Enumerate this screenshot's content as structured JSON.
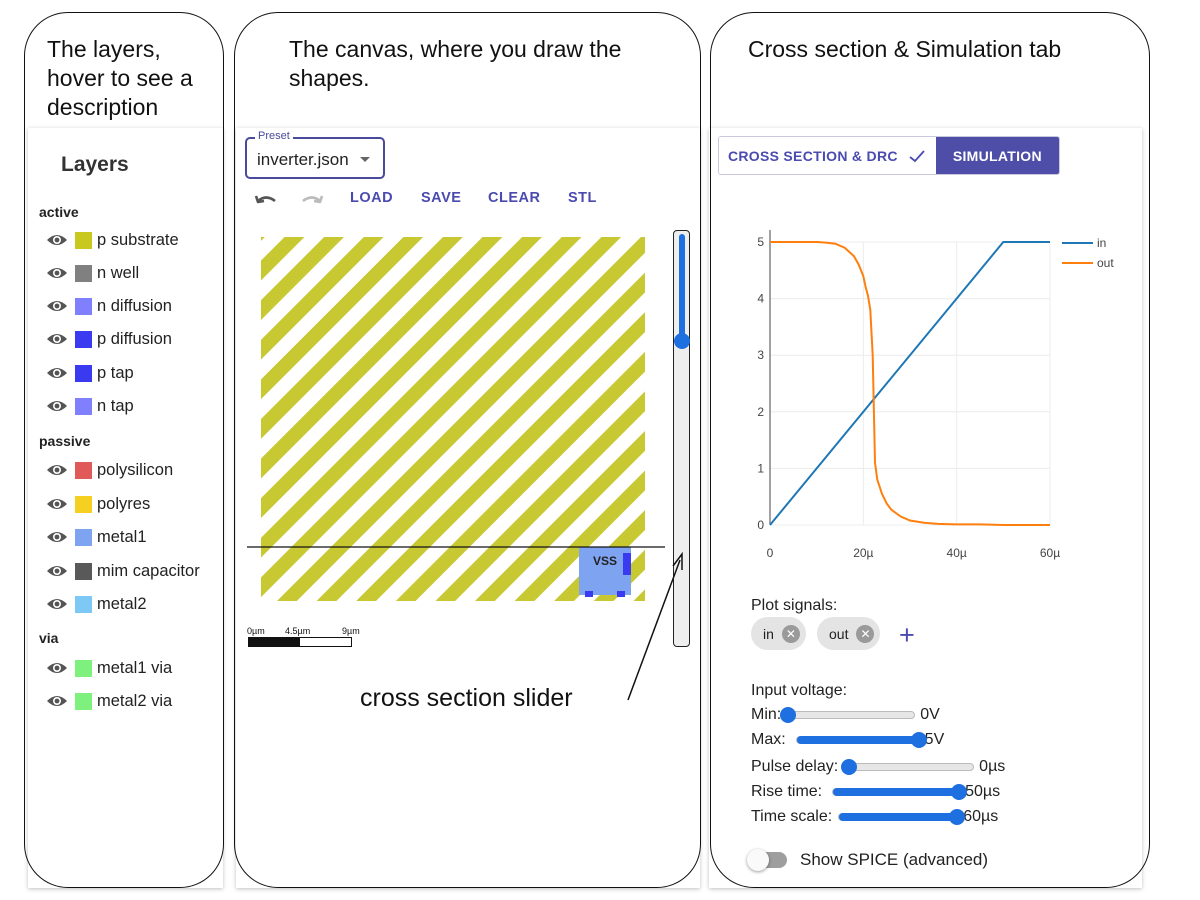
{
  "captions": {
    "layers": [
      "The layers,",
      "hover to see a",
      "description"
    ],
    "canvas": [
      "The canvas, where you draw the",
      "shapes."
    ],
    "right": [
      "Cross section & Simulation tab"
    ],
    "slider_annotation": "cross section slider"
  },
  "layers_panel": {
    "title": "Layers",
    "groups": [
      {
        "label": "active",
        "items": [
          {
            "label": "p substrate",
            "color": "#c8c81e"
          },
          {
            "label": "n well",
            "color": "#808080"
          },
          {
            "label": "n diffusion",
            "color": "#8080ff"
          },
          {
            "label": "p diffusion",
            "color": "#3a3af0"
          },
          {
            "label": "p tap",
            "color": "#3a3af0"
          },
          {
            "label": "n tap",
            "color": "#8080ff"
          }
        ]
      },
      {
        "label": "passive",
        "items": [
          {
            "label": "polysilicon",
            "color": "#e05a5a"
          },
          {
            "label": "polyres",
            "color": "#f5d020"
          },
          {
            "label": "metal1",
            "color": "#7ea3f0"
          },
          {
            "label": "mim capacitor",
            "color": "#595959"
          },
          {
            "label": "metal2",
            "color": "#7ec8f5"
          }
        ]
      },
      {
        "label": "via",
        "items": [
          {
            "label": "metal1 via",
            "color": "#7ef07e"
          },
          {
            "label": "metal2 via",
            "color": "#7ef07e"
          }
        ]
      }
    ]
  },
  "canvas_panel": {
    "preset_legend": "Preset",
    "preset_value": "inverter.json",
    "toolbar": {
      "load": "LOAD",
      "save": "SAVE",
      "clear": "CLEAR",
      "stl": "STL"
    },
    "icons": {
      "undo": "undo-icon",
      "redo": "redo-icon"
    },
    "shape_label": "VSS",
    "stripe_color": "#c8c832",
    "scale_labels": [
      "0µm",
      "4.5µm",
      "9µm"
    ],
    "slider_fraction": 0.74
  },
  "right_panel": {
    "tabs": {
      "cross_section": "CROSS SECTION & DRC",
      "simulation": "SIMULATION"
    },
    "plot_signals_label": "Plot signals:",
    "signal_chips": [
      "in",
      "out"
    ],
    "input_voltage_label": "Input voltage:",
    "controls": [
      {
        "label": "Min:",
        "value": "0V",
        "fraction": 0.0
      },
      {
        "label": "Max:",
        "value": "5V",
        "fraction": 1.0
      },
      {
        "label": "Pulse delay:",
        "value": "0µs",
        "fraction": 0.0
      },
      {
        "label": "Rise time:",
        "value": "50µs",
        "fraction": 1.0
      },
      {
        "label": "Time scale:",
        "value": "60µs",
        "fraction": 1.0
      }
    ],
    "show_spice_label": "Show SPICE (advanced)"
  },
  "chart_data": {
    "type": "line",
    "x_ticks": [
      "0",
      "20µ",
      "40µ",
      "60µ"
    ],
    "y_ticks": [
      "0",
      "1",
      "2",
      "3",
      "4",
      "5"
    ],
    "xlim": [
      0,
      60
    ],
    "ylim": [
      0,
      5
    ],
    "legend_position": "top-right",
    "grid": true,
    "series": [
      {
        "name": "in",
        "color": "#1f77b4",
        "x": [
          0,
          50,
          60
        ],
        "y": [
          0,
          5,
          5
        ]
      },
      {
        "name": "out",
        "color": "#ff7f0e",
        "x": [
          0,
          10,
          12,
          14,
          16,
          18,
          19,
          20,
          20.5,
          21,
          21.5,
          22,
          22.5,
          23,
          24,
          25,
          26,
          28,
          30,
          33,
          36,
          40,
          45,
          50,
          60
        ],
        "y": [
          5,
          5,
          4.99,
          4.97,
          4.9,
          4.75,
          4.6,
          4.4,
          4.2,
          4.05,
          3.8,
          3.0,
          1.1,
          0.8,
          0.55,
          0.38,
          0.27,
          0.15,
          0.08,
          0.04,
          0.02,
          0.01,
          0.01,
          0.0,
          0.0
        ]
      }
    ]
  }
}
